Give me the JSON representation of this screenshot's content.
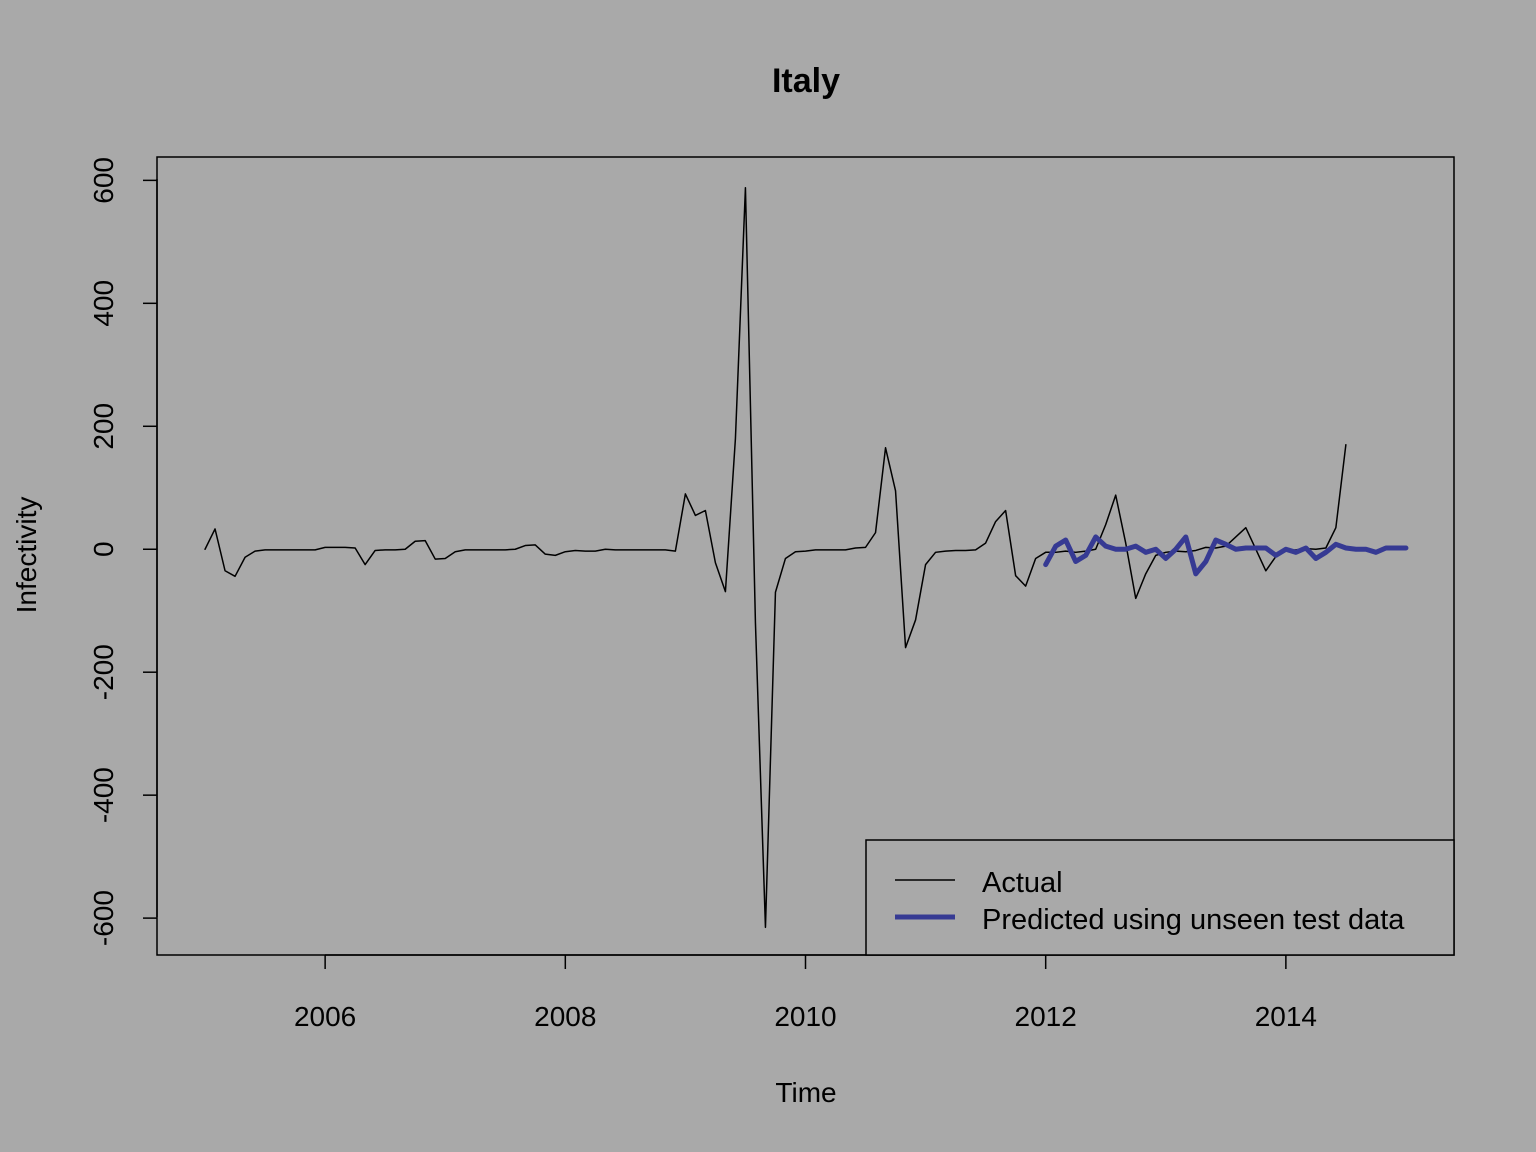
{
  "chart_data": {
    "type": "line",
    "title": "Italy",
    "xlabel": "Time",
    "ylabel": "Infectivity",
    "xlim": [
      2004.6,
      2015.4
    ],
    "ylim": [
      -660,
      638
    ],
    "x_ticks": [
      2006,
      2008,
      2010,
      2012,
      2014
    ],
    "x_tick_labels": [
      "2006",
      "2008",
      "2010",
      "2012",
      "2014"
    ],
    "y_ticks": [
      -600,
      -400,
      -200,
      0,
      200,
      400,
      600
    ],
    "y_tick_labels": [
      "-600",
      "-400",
      "-200",
      "0",
      "200",
      "400",
      "600"
    ],
    "grid": false,
    "legend_position": "bottom-right",
    "colors": {
      "actual": "#000000",
      "predicted": "#363a93",
      "background": "#a9a9a9"
    },
    "series": [
      {
        "name": "Actual",
        "color": "#000000",
        "start": 2005,
        "step": 0.08333,
        "values": [
          0,
          33,
          -35,
          -44,
          -13,
          -3,
          -1,
          -1,
          -1,
          -1,
          -1,
          -1,
          3,
          3,
          3,
          2,
          -25,
          -2,
          -1,
          -1,
          0,
          13,
          14,
          -16,
          -15,
          -4,
          -1,
          -1,
          -1,
          -1,
          -1,
          0,
          6,
          7,
          -8,
          -10,
          -4,
          -2,
          -3,
          -3,
          0,
          -1,
          -1,
          -1,
          -1,
          -1,
          -1,
          -3,
          90,
          55,
          63,
          -22,
          -69,
          180,
          588,
          -120,
          -615,
          -70,
          -15,
          -4,
          -3,
          -1,
          -1,
          -1,
          -1,
          2,
          3,
          27,
          165,
          95,
          -160,
          -115,
          -25,
          -5,
          -3,
          -2,
          -2,
          -1,
          10,
          45,
          63,
          -43,
          -60,
          -15,
          -5,
          -5,
          -3,
          -5,
          -3,
          0,
          40,
          88,
          10,
          -80,
          -40,
          -10,
          -5,
          -3,
          -4,
          -2,
          3,
          2,
          5,
          20,
          35,
          0,
          -35,
          -12,
          -3,
          -1,
          1,
          0,
          2,
          35,
          170
        ]
      },
      {
        "name": "Predicted using unseen test data",
        "color": "#363a93",
        "start": 2012,
        "step": 0.08333,
        "values": [
          -25,
          5,
          15,
          -20,
          -10,
          20,
          5,
          0,
          0,
          5,
          -5,
          0,
          -15,
          0,
          20,
          -40,
          -20,
          15,
          8,
          0,
          2,
          2,
          2,
          -10,
          0,
          -5,
          2,
          -15,
          -5,
          8,
          2,
          0,
          0,
          -5,
          2,
          2,
          2
        ]
      }
    ]
  },
  "legend": {
    "items": [
      {
        "label": "Actual"
      },
      {
        "label": "Predicted using unseen test data"
      }
    ]
  }
}
